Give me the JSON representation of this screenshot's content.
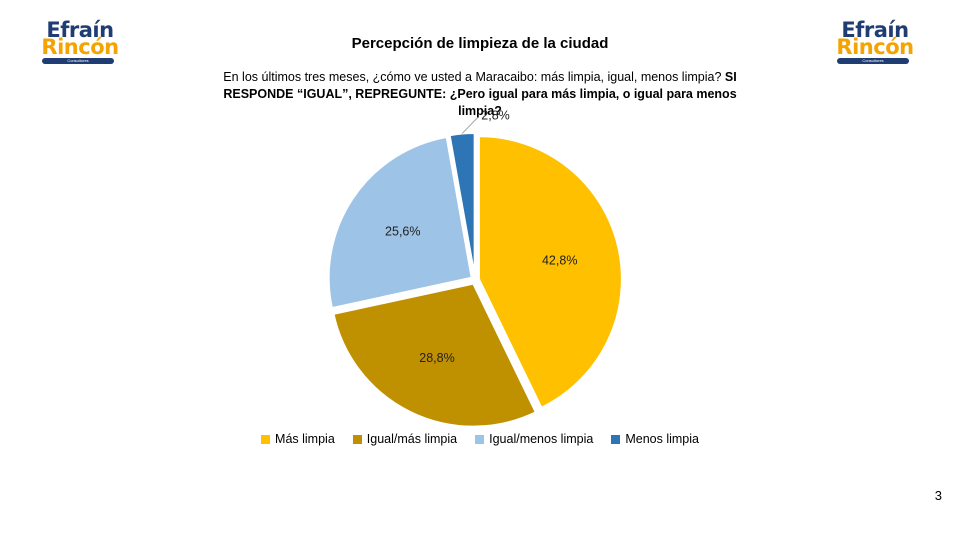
{
  "logo": {
    "line1": "Efraín",
    "line2": "Rincón",
    "tagline": "Consultores",
    "colors": {
      "navy": "#1f3d73",
      "gold": "#f4a300"
    }
  },
  "slide": {
    "title": "Percepción de limpieza de la ciudad",
    "question_normal": "En los últimos tres meses, ¿cómo ve usted a Maracaibo: más limpia, igual, menos limpia? ",
    "question_bold": "SI RESPONDE “IGUAL”, REPREGUNTE: ¿Pero igual para más limpia, o igual para menos limpia?",
    "page_number": "3"
  },
  "chart_data": {
    "type": "pie",
    "title": "",
    "legend_position": "bottom",
    "start_angle_deg": 0,
    "direction": "clockwise",
    "exploded": true,
    "slices": [
      {
        "label": "Más limpia",
        "value": 42.8,
        "display": "42,8%",
        "color": "#ffc000"
      },
      {
        "label": "Igual/más limpia",
        "value": 28.8,
        "display": "28,8%",
        "color": "#bf9000"
      },
      {
        "label": "Igual/menos limpia",
        "value": 25.6,
        "display": "25,6%",
        "color": "#9dc3e6"
      },
      {
        "label": "Menos limpia",
        "value": 2.8,
        "display": "2,8%",
        "color": "#2e75b6"
      }
    ]
  }
}
